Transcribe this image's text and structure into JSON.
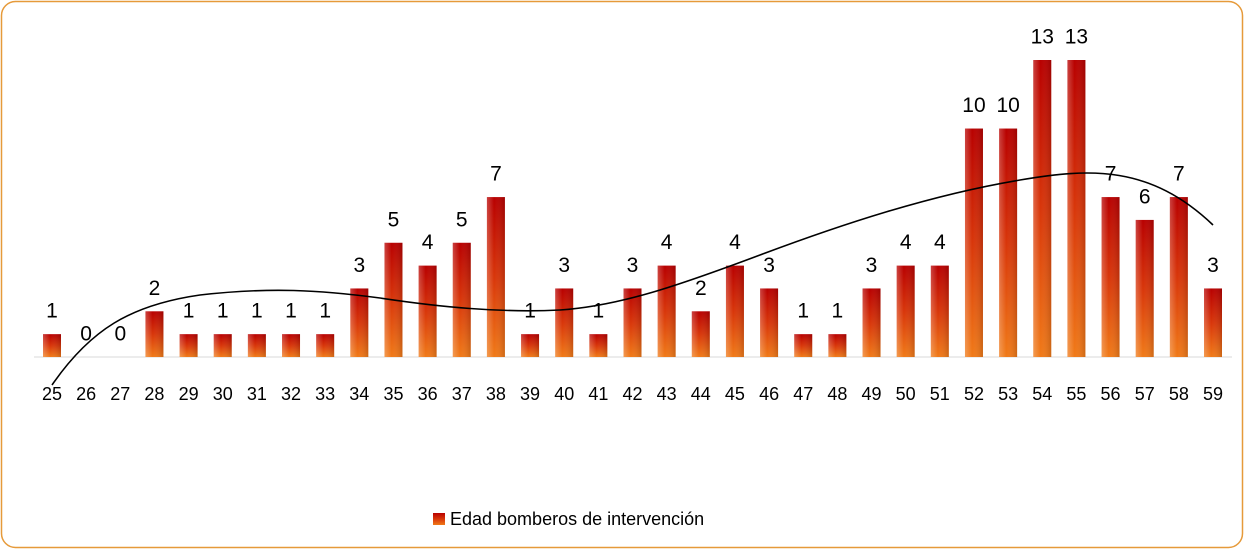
{
  "chart_data": {
    "type": "bar",
    "categories": [
      "25",
      "26",
      "27",
      "28",
      "29",
      "30",
      "31",
      "32",
      "33",
      "34",
      "35",
      "36",
      "37",
      "38",
      "39",
      "40",
      "41",
      "42",
      "43",
      "44",
      "45",
      "46",
      "47",
      "48",
      "49",
      "50",
      "51",
      "52",
      "53",
      "54",
      "55",
      "56",
      "57",
      "58",
      "59"
    ],
    "series": [
      {
        "name": "Edad bomberos de intervención",
        "color": "#d8360a",
        "values": [
          1,
          0,
          0,
          2,
          1,
          1,
          1,
          1,
          1,
          3,
          5,
          4,
          5,
          7,
          1,
          3,
          1,
          3,
          4,
          2,
          4,
          3,
          1,
          1,
          3,
          4,
          4,
          10,
          10,
          13,
          13,
          7,
          6,
          7,
          3
        ]
      }
    ],
    "legend": "bottom"
  }
}
